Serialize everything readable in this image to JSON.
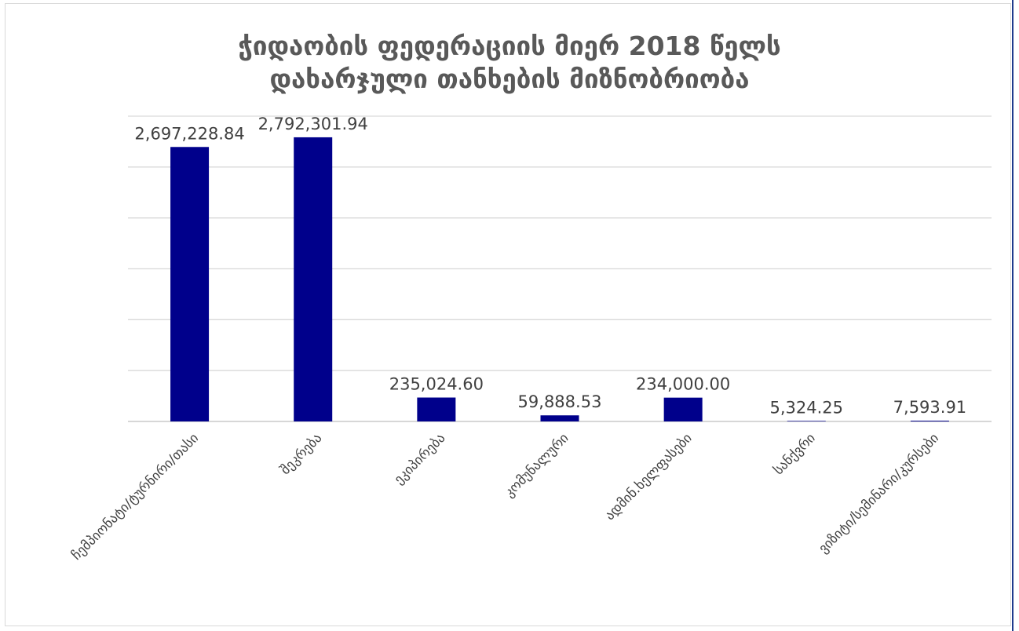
{
  "chart_data": {
    "type": "bar",
    "title_lines": [
      "ჭიდაობის ფედერაციის მიერ 2018 წელს",
      "დახარჯული თანხების მიზნობრიობა"
    ],
    "categories": [
      "ჩემპიონატი/ტურნირი/თასი",
      "შეკრება",
      "ეკიპირება",
      "კომუნალური",
      "ადმინ.ხელფასები",
      "სანქვრი",
      "ვიზიტი/სემინარი/კურსები"
    ],
    "values": [
      2697228.84,
      2792301.94,
      235024.6,
      59888.53,
      234000.0,
      5324.25,
      7593.91
    ],
    "data_labels": [
      "2,697,228.84",
      "2,792,301.94",
      "235,024.60",
      "59,888.53",
      "234,000.00",
      "5,324.25",
      "7,593.91"
    ],
    "ylim": [
      0,
      3000000
    ],
    "grid": true,
    "bar_color": "#00008b",
    "grid_color": "#d9d9d9"
  }
}
